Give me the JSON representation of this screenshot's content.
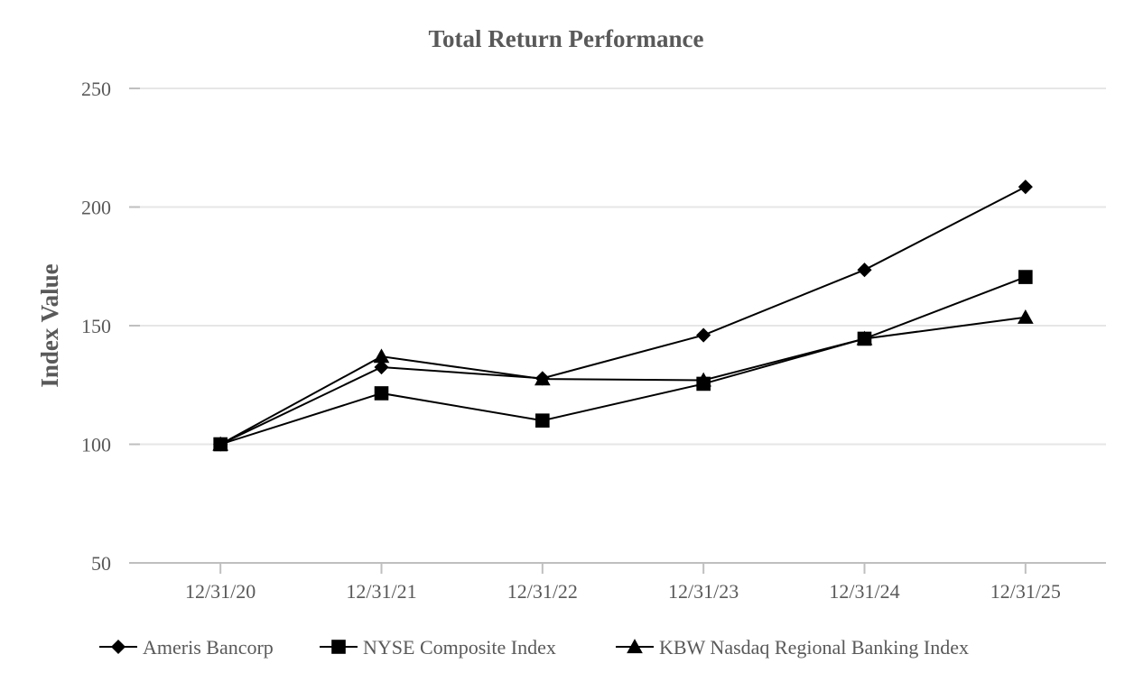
{
  "chart_data": {
    "type": "line",
    "title": "Total Return Performance",
    "xlabel": "",
    "ylabel": "Index Value",
    "categories": [
      "12/31/20",
      "12/31/21",
      "12/31/22",
      "12/31/23",
      "12/31/24",
      "12/31/25"
    ],
    "ylim": [
      50,
      250
    ],
    "yticks": [
      50,
      100,
      150,
      200,
      250
    ],
    "grid": true,
    "legend_position": "bottom",
    "series": [
      {
        "name": "Ameris Bancorp",
        "marker": "diamond",
        "color": "#000000",
        "values": [
          100,
          132.5,
          127.8,
          146,
          173.5,
          208.5
        ]
      },
      {
        "name": "NYSE Composite Index",
        "marker": "square",
        "color": "#000000",
        "values": [
          100,
          121.5,
          110,
          125.5,
          144.5,
          170.5
        ]
      },
      {
        "name": "KBW Nasdaq Regional Banking Index",
        "marker": "triangle",
        "color": "#000000",
        "values": [
          100,
          137,
          127.5,
          127,
          144.5,
          153.5
        ]
      }
    ]
  }
}
